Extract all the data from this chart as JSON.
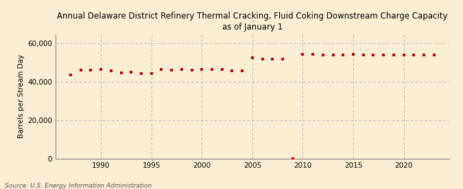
{
  "title": "Annual Delaware District Refinery Thermal Cracking, Fluid Coking Downstream Charge Capacity\nas of January 1",
  "ylabel": "Barrels per Stream Day",
  "source": "Source: U.S. Energy Information Administration",
  "background_color": "#faefd4",
  "plot_bg_color": "#faefd4",
  "marker_color": "#cc0000",
  "years": [
    1987,
    1988,
    1989,
    1990,
    1991,
    1992,
    1993,
    1994,
    1995,
    1996,
    1997,
    1998,
    1999,
    2000,
    2001,
    2002,
    2003,
    2004,
    2005,
    2006,
    2007,
    2008,
    2009,
    2010,
    2011,
    2012,
    2013,
    2014,
    2015,
    2016,
    2017,
    2018,
    2019,
    2020,
    2021,
    2022,
    2023
  ],
  "values": [
    43800,
    46200,
    46200,
    46700,
    45700,
    44900,
    45000,
    44500,
    44500,
    46500,
    46200,
    46500,
    46300,
    46500,
    46500,
    46500,
    46000,
    45900,
    52500,
    52000,
    52000,
    52000,
    0,
    54500,
    54500,
    54000,
    54200,
    54000,
    54500,
    54200,
    54000,
    54000,
    54000,
    54200,
    54000,
    54200,
    54000
  ],
  "xlim": [
    1985.5,
    2024.5
  ],
  "ylim": [
    0,
    65000
  ],
  "yticks": [
    0,
    20000,
    40000,
    60000
  ],
  "xticks": [
    1990,
    1995,
    2000,
    2005,
    2010,
    2015,
    2020
  ],
  "grid_color": "#bbbbbb",
  "title_fontsize": 8.5,
  "axis_fontsize": 7.5,
  "source_fontsize": 6.5
}
